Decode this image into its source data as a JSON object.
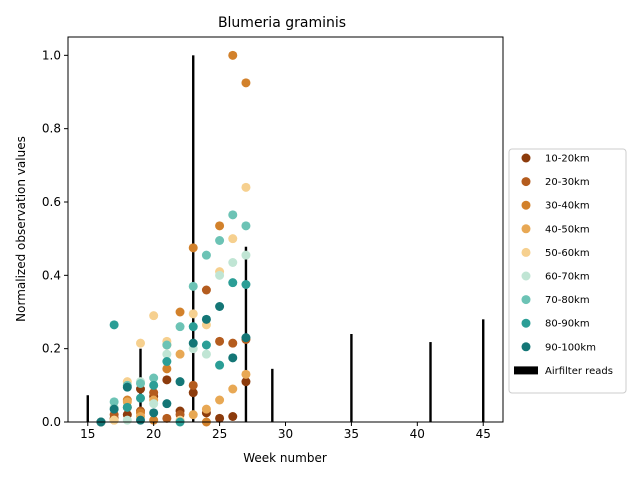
{
  "chart_data": {
    "type": "scatter",
    "title": "Blumeria graminis",
    "xlabel": "Week number",
    "ylabel": "Normalized observation values",
    "xlim": [
      13.5,
      46.5
    ],
    "ylim": [
      0,
      1.05
    ],
    "xticks": [
      "15",
      "20",
      "25",
      "30",
      "35",
      "40",
      "45"
    ],
    "yticks": [
      "0.0",
      "0.2",
      "0.4",
      "0.6",
      "0.8",
      "1.0"
    ],
    "legend_position": "right",
    "series": [
      {
        "name": "10-20km",
        "color": "#8c3b0c",
        "points": [
          [
            16,
            0.0
          ],
          [
            17,
            0.01
          ],
          [
            18,
            0.02
          ],
          [
            19,
            0.09
          ],
          [
            20,
            0.07
          ],
          [
            21,
            0.115
          ],
          [
            22,
            0.03
          ],
          [
            23,
            0.08
          ],
          [
            24,
            0.025
          ],
          [
            25,
            0.01
          ],
          [
            26,
            0.015
          ],
          [
            27,
            0.11
          ]
        ]
      },
      {
        "name": "20-30km",
        "color": "#b45c1e",
        "points": [
          [
            17,
            0.02
          ],
          [
            18,
            0.04
          ],
          [
            19,
            0.03
          ],
          [
            20,
            0.08
          ],
          [
            21,
            0.01
          ],
          [
            22,
            0.02
          ],
          [
            23,
            0.1
          ],
          [
            24,
            0.36
          ],
          [
            25,
            0.22
          ],
          [
            26,
            0.215
          ],
          [
            27,
            0.225
          ]
        ]
      },
      {
        "name": "30-40km",
        "color": "#d2812b",
        "points": [
          [
            18,
            0.06
          ],
          [
            19,
            0.025
          ],
          [
            20,
            0.005
          ],
          [
            21,
            0.145
          ],
          [
            22,
            0.3
          ],
          [
            23,
            0.475
          ],
          [
            24,
            0.0
          ],
          [
            25,
            0.535
          ],
          [
            26,
            1.0
          ],
          [
            27,
            0.925
          ]
        ]
      },
      {
        "name": "40-50km",
        "color": "#e8a854",
        "points": [
          [
            17,
            0.005
          ],
          [
            18,
            0.055
          ],
          [
            19,
            0.015
          ],
          [
            20,
            0.06
          ],
          [
            21,
            0.21
          ],
          [
            22,
            0.185
          ],
          [
            23,
            0.02
          ],
          [
            24,
            0.035
          ],
          [
            25,
            0.06
          ],
          [
            26,
            0.09
          ],
          [
            27,
            0.13
          ]
        ]
      },
      {
        "name": "50-60km",
        "color": "#f6d08f",
        "points": [
          [
            17,
            0.005
          ],
          [
            18,
            0.11
          ],
          [
            19,
            0.215
          ],
          [
            20,
            0.29
          ],
          [
            21,
            0.22
          ],
          [
            22,
            0.005
          ],
          [
            23,
            0.295
          ],
          [
            24,
            0.265
          ],
          [
            25,
            0.41
          ],
          [
            26,
            0.5
          ],
          [
            27,
            0.64
          ]
        ]
      },
      {
        "name": "60-70km",
        "color": "#c0e5d4",
        "points": [
          [
            17,
            0.04
          ],
          [
            18,
            0.005
          ],
          [
            19,
            0.11
          ],
          [
            20,
            0.05
          ],
          [
            21,
            0.185
          ],
          [
            22,
            0.11
          ],
          [
            23,
            0.2
          ],
          [
            24,
            0.185
          ],
          [
            25,
            0.4
          ],
          [
            26,
            0.435
          ],
          [
            27,
            0.455
          ]
        ]
      },
      {
        "name": "70-80km",
        "color": "#6cc3b5",
        "points": [
          [
            17,
            0.055
          ],
          [
            18,
            0.1
          ],
          [
            19,
            0.105
          ],
          [
            20,
            0.12
          ],
          [
            21,
            0.21
          ],
          [
            22,
            0.26
          ],
          [
            23,
            0.37
          ],
          [
            24,
            0.455
          ],
          [
            25,
            0.495
          ],
          [
            26,
            0.565
          ],
          [
            27,
            0.535
          ]
        ]
      },
      {
        "name": "80-90km",
        "color": "#2b9e96",
        "points": [
          [
            16,
            0.0
          ],
          [
            17,
            0.265
          ],
          [
            18,
            0.04
          ],
          [
            19,
            0.065
          ],
          [
            20,
            0.1
          ],
          [
            21,
            0.165
          ],
          [
            22,
            0.0
          ],
          [
            23,
            0.26
          ],
          [
            24,
            0.21
          ],
          [
            25,
            0.155
          ],
          [
            26,
            0.38
          ],
          [
            27,
            0.375
          ]
        ]
      },
      {
        "name": "90-100km",
        "color": "#147676",
        "points": [
          [
            16,
            0.0
          ],
          [
            17,
            0.035
          ],
          [
            18,
            0.095
          ],
          [
            19,
            0.005
          ],
          [
            20,
            0.025
          ],
          [
            21,
            0.05
          ],
          [
            22,
            0.11
          ],
          [
            23,
            0.215
          ],
          [
            24,
            0.28
          ],
          [
            25,
            0.315
          ],
          [
            26,
            0.175
          ],
          [
            27,
            0.23
          ]
        ]
      }
    ],
    "bars": {
      "name": "Airfilter reads",
      "color": "#000000",
      "points": [
        [
          15,
          0.073
        ],
        [
          19,
          0.2
        ],
        [
          23,
          1.0
        ],
        [
          27,
          0.478
        ],
        [
          29,
          0.145
        ],
        [
          35,
          0.24
        ],
        [
          41,
          0.218
        ],
        [
          45,
          0.28
        ]
      ]
    }
  }
}
